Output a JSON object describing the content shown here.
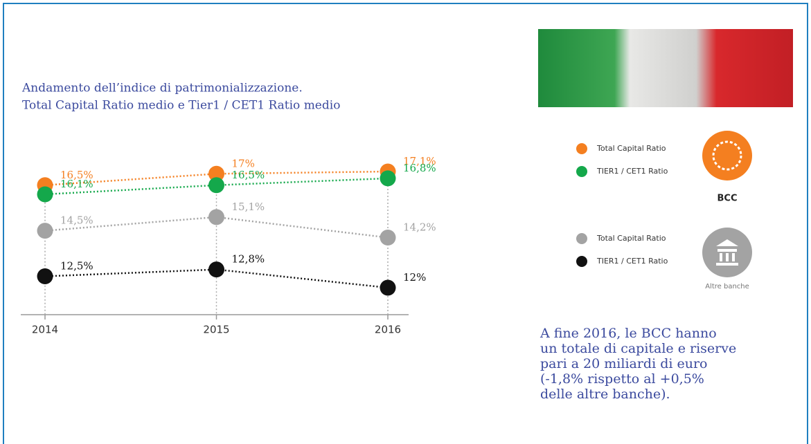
{
  "chart_data": {
    "type": "line",
    "title": [
      "Andamento dell’indice di patrimonializzazione.",
      "Total Capital Ratio medio e Tier1 / CET1 Ratio medio"
    ],
    "categories": [
      "2014",
      "2015",
      "2016"
    ],
    "series": [
      {
        "name": "Total Capital Ratio",
        "color": "#f47f20",
        "values": [
          16.5,
          17,
          17.1
        ],
        "value_labels": [
          "16,5%",
          "17%",
          "17,1%"
        ]
      },
      {
        "name": "TIER1 / CET1 Ratio",
        "color": "#14a84b",
        "values": [
          16.1,
          16.5,
          16.8
        ],
        "value_labels": [
          "16,1%",
          "16,5%",
          "16,8%"
        ]
      },
      {
        "name": "Total Capital Ratio",
        "color": "#a3a3a3",
        "values": [
          14.5,
          15.1,
          14.2
        ],
        "value_labels": [
          "14,5%",
          "15,1%",
          "14,2%"
        ]
      },
      {
        "name": "TIER1 / CET1 Ratio",
        "color": "#111111",
        "values": [
          12.5,
          12.8,
          12
        ],
        "value_labels": [
          "12,5%",
          "12,8%",
          "12%"
        ]
      }
    ],
    "legend_groups": [
      "BCC",
      "Altre banche"
    ],
    "annotation": [
      "A fine 2016, le BCC hanno",
      "un totale di capitale e riserve",
      "pari a 20 miliardi di euro",
      "(-1,8% rispetto al +0,5%",
      "delle altre banche)."
    ]
  }
}
